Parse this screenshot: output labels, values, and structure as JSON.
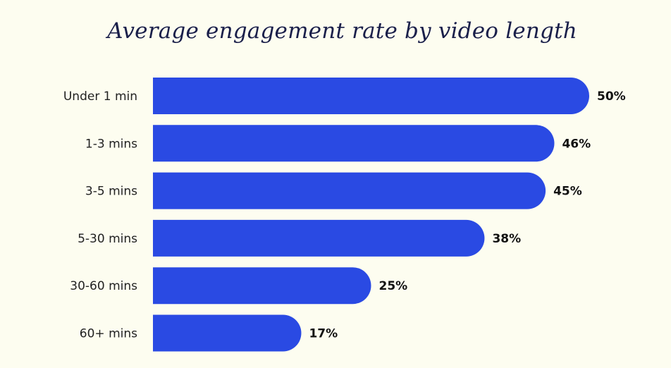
{
  "chart_data": {
    "type": "bar",
    "orientation": "horizontal",
    "title": "Average engagement rate by video length",
    "categories": [
      "Under 1 min",
      "1-3 mins",
      "3-5 mins",
      "5-30 mins",
      "30-60 mins",
      "60+ mins"
    ],
    "values": [
      50,
      46,
      45,
      38,
      25,
      17
    ],
    "value_labels": [
      "50%",
      "46%",
      "45%",
      "38%",
      "25%",
      "17%"
    ],
    "unit": "%",
    "xlim": [
      0,
      50
    ],
    "grid": false,
    "bar_color": "#2a4ae3",
    "background_color": "#fdfdf0"
  }
}
